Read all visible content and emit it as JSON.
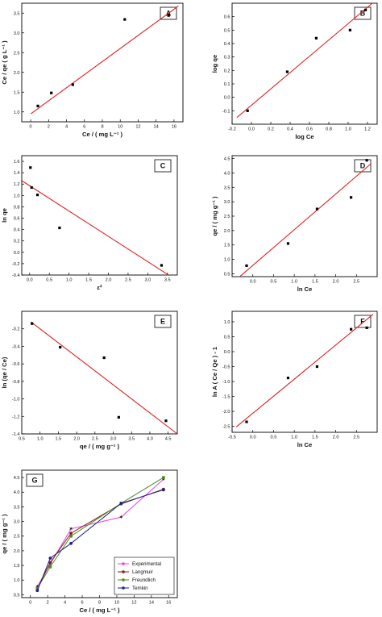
{
  "chart_data": [
    {
      "panel": "A",
      "type": "scatter",
      "xlabel": "Ce / ( mg L⁻¹ )",
      "ylabel": "Ce / qe ( g L⁻¹ )",
      "xlim": [
        -1,
        17
      ],
      "ylim": [
        0.75,
        3.75
      ],
      "xticks": [
        0,
        2,
        4,
        6,
        8,
        10,
        12,
        14,
        16
      ],
      "yticks": [
        1.0,
        1.5,
        2.0,
        2.5,
        3.0,
        3.5
      ],
      "points": [
        [
          0.8,
          1.15
        ],
        [
          2.3,
          1.48
        ],
        [
          4.7,
          1.69
        ],
        [
          10.5,
          3.34
        ],
        [
          15.4,
          3.44
        ]
      ],
      "fit": [
        [
          0,
          0.95
        ],
        [
          16.5,
          3.68
        ]
      ]
    },
    {
      "panel": "B",
      "type": "scatter",
      "xlabel": "log Ce",
      "ylabel": "log qe",
      "xlim": [
        -0.2,
        1.3
      ],
      "ylim": [
        -0.2,
        0.7
      ],
      "xticks": [
        -0.2,
        0.0,
        0.2,
        0.4,
        0.6,
        0.8,
        1.0,
        1.2
      ],
      "yticks": [
        -0.1,
        0.0,
        0.1,
        0.2,
        0.3,
        0.4,
        0.5,
        0.6
      ],
      "points": [
        [
          -0.04,
          -0.1
        ],
        [
          0.37,
          0.19
        ],
        [
          0.67,
          0.44
        ],
        [
          1.02,
          0.5
        ],
        [
          1.18,
          0.65
        ]
      ],
      "fit": [
        [
          -0.15,
          -0.15
        ],
        [
          1.25,
          0.7
        ]
      ]
    },
    {
      "panel": "C",
      "type": "scatter",
      "xlabel": "ε²",
      "ylabel": "ln qe",
      "xlim": [
        -0.2,
        3.75
      ],
      "ylim": [
        -0.4,
        1.7
      ],
      "xticks": [
        0.0,
        0.5,
        1.0,
        1.5,
        2.0,
        2.5,
        3.0,
        3.5
      ],
      "yticks": [
        -0.4,
        -0.2,
        0.0,
        0.2,
        0.4,
        0.6,
        0.8,
        1.0,
        1.2,
        1.4,
        1.6
      ],
      "points": [
        [
          0.02,
          1.49
        ],
        [
          0.05,
          1.14
        ],
        [
          0.2,
          1.01
        ],
        [
          0.76,
          0.43
        ],
        [
          3.35,
          -0.23
        ]
      ],
      "fit": [
        [
          -0.2,
          1.26
        ],
        [
          3.55,
          -0.41
        ]
      ]
    },
    {
      "panel": "D",
      "type": "scatter",
      "xlabel": "ln Ce",
      "ylabel": "qe / ( mg g⁻¹ )",
      "xlim": [
        -0.5,
        3.0
      ],
      "ylim": [
        0.4,
        4.6
      ],
      "xticks": [
        0.0,
        0.5,
        1.0,
        1.5,
        2.0,
        2.5
      ],
      "yticks": [
        0.5,
        1.0,
        1.5,
        2.0,
        2.5,
        3.0,
        3.5,
        4.0,
        4.5
      ],
      "points": [
        [
          -0.15,
          0.78
        ],
        [
          0.85,
          1.55
        ],
        [
          1.55,
          2.75
        ],
        [
          2.37,
          3.15
        ],
        [
          2.75,
          4.44
        ]
      ],
      "fit": [
        [
          -0.3,
          0.42
        ],
        [
          2.85,
          4.32
        ]
      ]
    },
    {
      "panel": "E",
      "type": "scatter",
      "xlabel": "qe / ( mg g⁻¹ )",
      "ylabel": "ln (qe / Ce)",
      "xlim": [
        0.5,
        4.75
      ],
      "ylim": [
        -1.4,
        0.0
      ],
      "xticks": [
        0.5,
        1.0,
        1.5,
        2.0,
        2.5,
        3.0,
        3.5,
        4.0,
        4.5
      ],
      "yticks": [
        -1.4,
        -1.2,
        -1.0,
        -0.8,
        -0.6,
        -0.4,
        -0.2
      ],
      "points": [
        [
          0.78,
          -0.14
        ],
        [
          1.55,
          -0.41
        ],
        [
          2.75,
          -0.53
        ],
        [
          3.15,
          -1.21
        ],
        [
          4.44,
          -1.25
        ]
      ],
      "fit": [
        [
          0.75,
          -0.12
        ],
        [
          4.75,
          -1.4
        ]
      ]
    },
    {
      "panel": "F",
      "type": "scatter",
      "xlabel": "ln Ce",
      "ylabel": "ln A ( Ce / Qe ) - 1",
      "xlim": [
        -0.5,
        3.0
      ],
      "ylim": [
        -2.7,
        1.35
      ],
      "xticks": [
        -0.5,
        0.0,
        0.5,
        1.0,
        1.5,
        2.0,
        2.5
      ],
      "yticks": [
        -2.5,
        -2.0,
        -1.5,
        -1.0,
        -0.5,
        0.0,
        0.5,
        1.0
      ],
      "points": [
        [
          -0.15,
          -2.35
        ],
        [
          0.85,
          -0.88
        ],
        [
          1.55,
          -0.5
        ],
        [
          2.37,
          0.75
        ],
        [
          2.75,
          0.8
        ]
      ],
      "fit": [
        [
          -0.4,
          -2.52
        ],
        [
          2.9,
          1.25
        ]
      ]
    },
    {
      "panel": "G",
      "type": "line",
      "xlabel": "Ce / ( mg L⁻¹ )",
      "ylabel": "qe / ( mg g⁻¹ )",
      "xlim": [
        -1,
        17
      ],
      "ylim": [
        0.4,
        4.75
      ],
      "xticks": [
        0,
        2,
        4,
        6,
        8,
        10,
        12,
        14,
        16
      ],
      "yticks": [
        0.5,
        1.0,
        1.5,
        2.0,
        2.5,
        3.0,
        3.5,
        4.0,
        4.5
      ],
      "x": [
        0.8,
        2.3,
        4.7,
        10.5,
        15.4
      ],
      "legend_position": "bottom-right",
      "series": [
        {
          "name": "Experimental",
          "color": "#e542e5",
          "marker": "star",
          "values": [
            0.78,
            1.55,
            2.75,
            3.15,
            4.44
          ]
        },
        {
          "name": "Langmuir",
          "color": "#8b1a1a",
          "marker": "circle",
          "values": [
            0.7,
            1.6,
            2.6,
            3.6,
            4.1
          ]
        },
        {
          "name": "Freundlich",
          "color": "#4c8a1e",
          "marker": "square",
          "values": [
            0.72,
            1.45,
            2.5,
            3.62,
            4.5
          ]
        },
        {
          "name": "Temkin",
          "color": "#1f1f8f",
          "marker": "circle",
          "values": [
            0.64,
            1.75,
            2.25,
            3.62,
            4.08
          ]
        }
      ]
    }
  ],
  "fit_color": "#e01e1e",
  "point_color": "#000000"
}
